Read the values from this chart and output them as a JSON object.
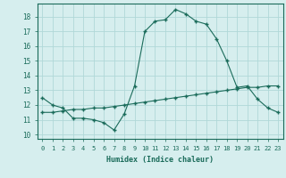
{
  "xlabel": "Humidex (Indice chaleur)",
  "x_ticks": [
    0,
    1,
    2,
    3,
    4,
    5,
    6,
    7,
    8,
    9,
    10,
    11,
    12,
    13,
    14,
    15,
    16,
    17,
    18,
    19,
    20,
    21,
    22,
    23
  ],
  "y_ticks": [
    10,
    11,
    12,
    13,
    14,
    15,
    16,
    17,
    18
  ],
  "xlim": [
    -0.5,
    23.5
  ],
  "ylim": [
    9.7,
    18.9
  ],
  "bg_color": "#d6eeee",
  "grid_color": "#b0d8d8",
  "line_color": "#1a6b5a",
  "series1_x": [
    0,
    1,
    2,
    3,
    4,
    5,
    6,
    7,
    8,
    9,
    10,
    11,
    12,
    13,
    14,
    15,
    16,
    17,
    18,
    19,
    20,
    21,
    22,
    23
  ],
  "series1_y": [
    12.5,
    12.0,
    11.8,
    11.1,
    11.1,
    11.0,
    10.8,
    10.3,
    11.4,
    13.3,
    17.0,
    17.7,
    17.8,
    18.5,
    18.2,
    17.7,
    17.5,
    16.5,
    15.0,
    13.2,
    13.3,
    12.4,
    11.8,
    11.5
  ],
  "series2_x": [
    0,
    1,
    2,
    3,
    4,
    5,
    6,
    7,
    8,
    9,
    10,
    11,
    12,
    13,
    14,
    15,
    16,
    17,
    18,
    19,
    20,
    21,
    22,
    23
  ],
  "series2_y": [
    11.5,
    11.5,
    11.6,
    11.7,
    11.7,
    11.8,
    11.8,
    11.9,
    12.0,
    12.1,
    12.2,
    12.3,
    12.4,
    12.5,
    12.6,
    12.7,
    12.8,
    12.9,
    13.0,
    13.1,
    13.2,
    13.2,
    13.3,
    13.3
  ]
}
